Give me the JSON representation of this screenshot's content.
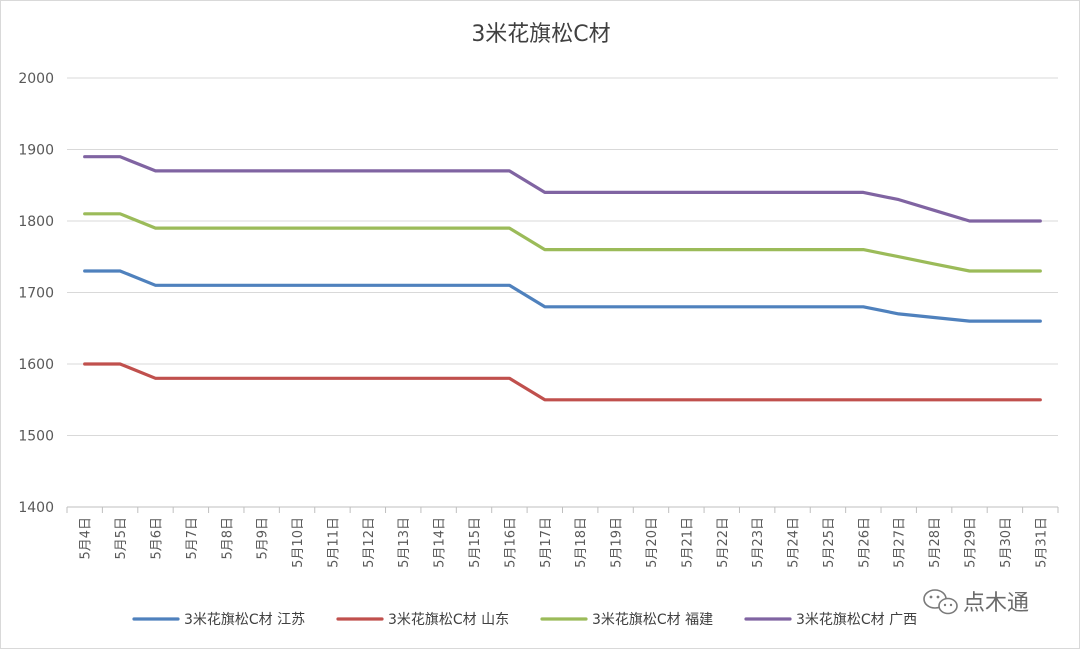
{
  "chart_data": {
    "type": "line",
    "title": "3米花旗松C材",
    "xlabel": "",
    "ylabel": "",
    "ylim": [
      1400,
      2000
    ],
    "yticks": [
      1400,
      1500,
      1600,
      1700,
      1800,
      1900,
      2000
    ],
    "grid": true,
    "legend_position": "bottom",
    "categories": [
      "5月4日",
      "5月5日",
      "5月6日",
      "5月7日",
      "5月8日",
      "5月9日",
      "5月10日",
      "5月11日",
      "5月12日",
      "5月13日",
      "5月14日",
      "5月15日",
      "5月16日",
      "5月17日",
      "5月18日",
      "5月19日",
      "5月20日",
      "5月21日",
      "5月22日",
      "5月23日",
      "5月24日",
      "5月25日",
      "5月26日",
      "5月27日",
      "5月28日",
      "5月29日",
      "5月30日",
      "5月31日"
    ],
    "series": [
      {
        "name": "3米花旗松C材 江苏",
        "color": "#4f81bd",
        "values": [
          1730,
          1730,
          1710,
          1710,
          1710,
          1710,
          1710,
          1710,
          1710,
          1710,
          1710,
          1710,
          1710,
          1680,
          1680,
          1680,
          1680,
          1680,
          1680,
          1680,
          1680,
          1680,
          1680,
          1670,
          1665,
          1660,
          1660,
          1660
        ]
      },
      {
        "name": "3米花旗松C材 山东",
        "color": "#c0504d",
        "values": [
          1600,
          1600,
          1580,
          1580,
          1580,
          1580,
          1580,
          1580,
          1580,
          1580,
          1580,
          1580,
          1580,
          1550,
          1550,
          1550,
          1550,
          1550,
          1550,
          1550,
          1550,
          1550,
          1550,
          1550,
          1550,
          1550,
          1550,
          1550
        ]
      },
      {
        "name": "3米花旗松C材 福建",
        "color": "#9bbb59",
        "values": [
          1810,
          1810,
          1790,
          1790,
          1790,
          1790,
          1790,
          1790,
          1790,
          1790,
          1790,
          1790,
          1790,
          1760,
          1760,
          1760,
          1760,
          1760,
          1760,
          1760,
          1760,
          1760,
          1760,
          1750,
          1740,
          1730,
          1730,
          1730
        ]
      },
      {
        "name": "3米花旗松C材 广西",
        "color": "#8064a2",
        "values": [
          1890,
          1890,
          1870,
          1870,
          1870,
          1870,
          1870,
          1870,
          1870,
          1870,
          1870,
          1870,
          1870,
          1840,
          1840,
          1840,
          1840,
          1840,
          1840,
          1840,
          1840,
          1840,
          1840,
          1830,
          1815,
          1800,
          1800,
          1800
        ]
      }
    ]
  },
  "watermark": {
    "text": "点木通",
    "icon": "wechat-icon"
  }
}
